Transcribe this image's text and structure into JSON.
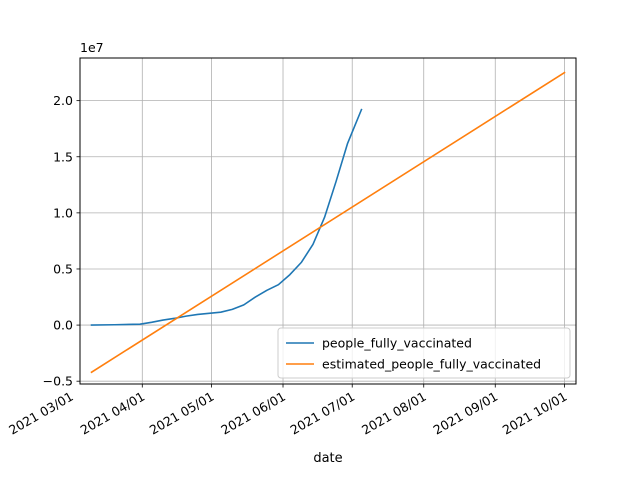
{
  "chart_data": {
    "type": "line",
    "xlabel": "date",
    "ylabel": "",
    "y_offset_label": "1e7",
    "x_axis_type": "date",
    "xlim": [
      "2021-03-05",
      "2021-10-06"
    ],
    "ylim": [
      -5250000,
      23800000
    ],
    "grid": true,
    "legend_position": "lower-right",
    "x_ticks": [
      {
        "date": "2021-03-01",
        "label": "2021 03/01"
      },
      {
        "date": "2021-04-01",
        "label": "2021 04/01"
      },
      {
        "date": "2021-05-01",
        "label": "2021 05/01"
      },
      {
        "date": "2021-06-01",
        "label": "2021 06/01"
      },
      {
        "date": "2021-07-01",
        "label": "2021 07/01"
      },
      {
        "date": "2021-08-01",
        "label": "2021 08/01"
      },
      {
        "date": "2021-09-01",
        "label": "2021 09/01"
      },
      {
        "date": "2021-10-01",
        "label": "2021 10/01"
      }
    ],
    "y_ticks": [
      {
        "value": -5000000,
        "label": "−0.5"
      },
      {
        "value": 0,
        "label": "0.0"
      },
      {
        "value": 5000000,
        "label": "0.5"
      },
      {
        "value": 10000000,
        "label": "1.0"
      },
      {
        "value": 15000000,
        "label": "1.5"
      },
      {
        "value": 20000000,
        "label": "2.0"
      }
    ],
    "series": [
      {
        "name": "people_fully_vaccinated",
        "color": "#1f77b4",
        "points": [
          {
            "date": "2021-03-10",
            "value": 0
          },
          {
            "date": "2021-03-20",
            "value": 30000
          },
          {
            "date": "2021-03-31",
            "value": 80000
          },
          {
            "date": "2021-04-05",
            "value": 250000
          },
          {
            "date": "2021-04-10",
            "value": 450000
          },
          {
            "date": "2021-04-15",
            "value": 600000
          },
          {
            "date": "2021-04-20",
            "value": 800000
          },
          {
            "date": "2021-04-25",
            "value": 950000
          },
          {
            "date": "2021-04-30",
            "value": 1050000
          },
          {
            "date": "2021-05-05",
            "value": 1150000
          },
          {
            "date": "2021-05-10",
            "value": 1400000
          },
          {
            "date": "2021-05-15",
            "value": 1800000
          },
          {
            "date": "2021-05-20",
            "value": 2500000
          },
          {
            "date": "2021-05-25",
            "value": 3100000
          },
          {
            "date": "2021-05-30",
            "value": 3600000
          },
          {
            "date": "2021-06-04",
            "value": 4500000
          },
          {
            "date": "2021-06-09",
            "value": 5600000
          },
          {
            "date": "2021-06-14",
            "value": 7200000
          },
          {
            "date": "2021-06-19",
            "value": 9600000
          },
          {
            "date": "2021-06-24",
            "value": 12800000
          },
          {
            "date": "2021-06-29",
            "value": 16200000
          },
          {
            "date": "2021-07-05",
            "value": 19200000
          }
        ]
      },
      {
        "name": "estimated_people_fully_vaccinated",
        "color": "#ff7f0e",
        "points": [
          {
            "date": "2021-03-10",
            "value": -4200000
          },
          {
            "date": "2021-10-01",
            "value": 22500000
          }
        ]
      }
    ]
  }
}
